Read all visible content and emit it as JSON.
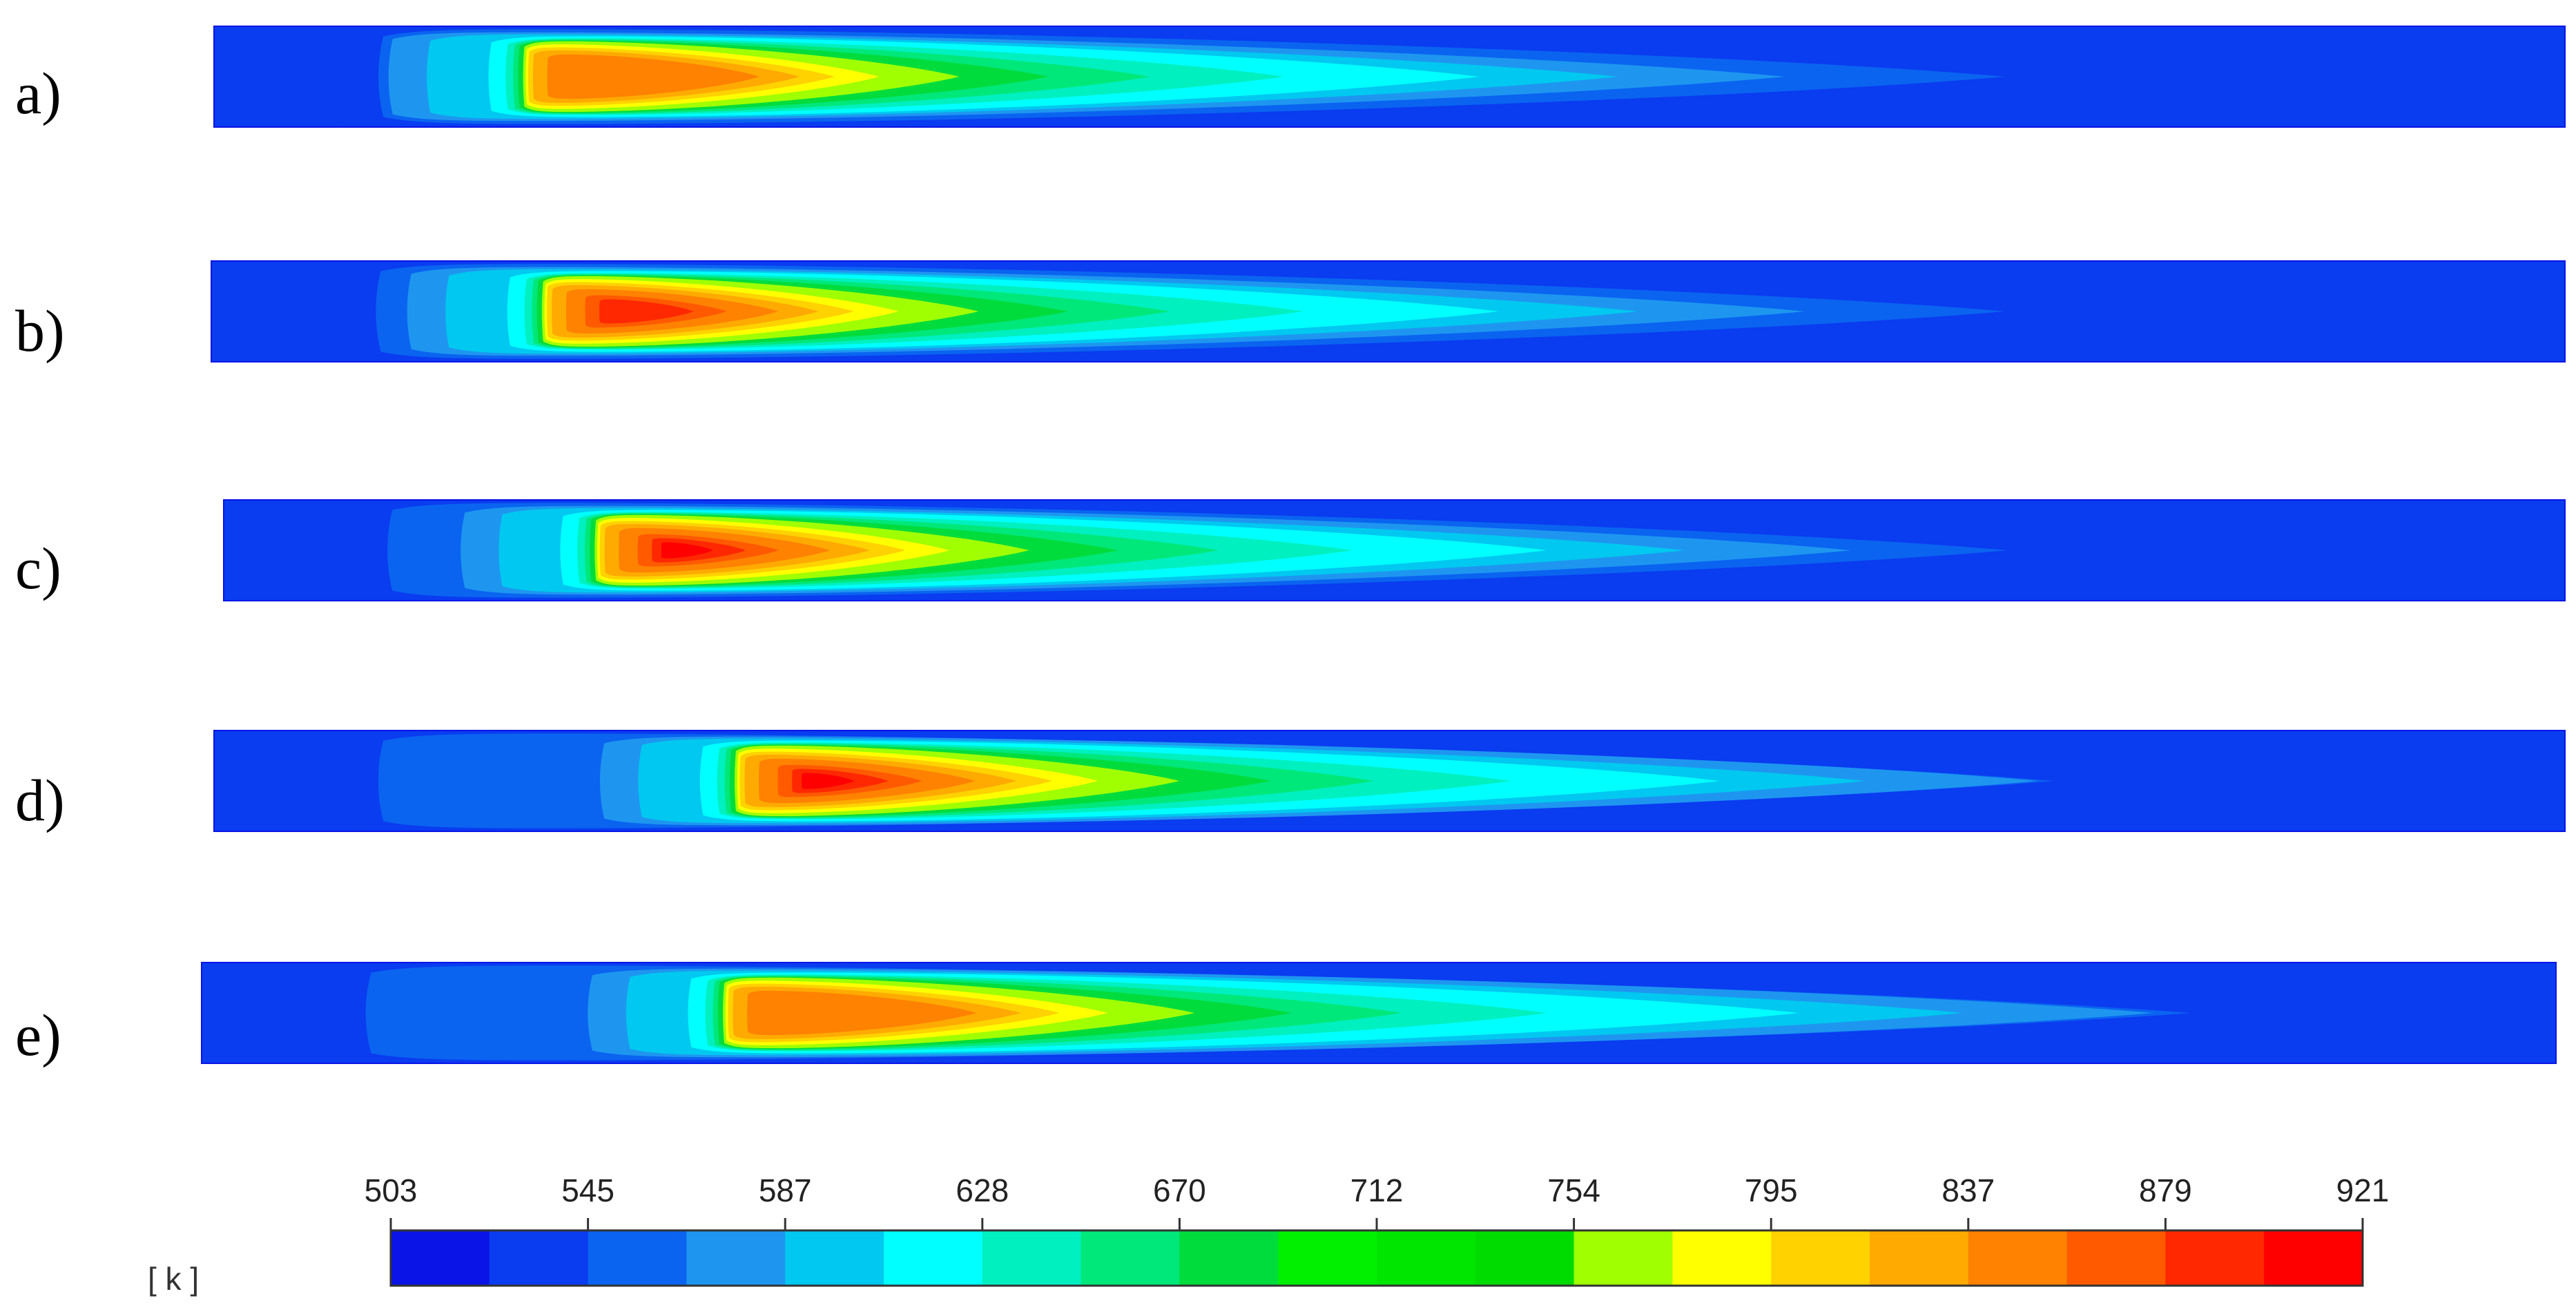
{
  "panels": [
    {
      "label": "a)"
    },
    {
      "label": "b)"
    },
    {
      "label": "c)"
    },
    {
      "label": "d)"
    },
    {
      "label": "e)"
    }
  ],
  "colorbar": {
    "ticks": [
      "503",
      "545",
      "587",
      "628",
      "670",
      "712",
      "754",
      "795",
      "837",
      "879",
      "921"
    ],
    "unit": "[ k ]",
    "colors": [
      "#0a14e6",
      "#0a3cf0",
      "#0a64f0",
      "#1e96f0",
      "#00c8f0",
      "#00ffff",
      "#00f0c0",
      "#00e87a",
      "#00dc3c",
      "#00f000",
      "#00e600",
      "#00dc00",
      "#a0ff00",
      "#ffff00",
      "#ffd200",
      "#ffaa00",
      "#ff8200",
      "#ff5a00",
      "#ff2800",
      "#ff0000"
    ]
  }
}
